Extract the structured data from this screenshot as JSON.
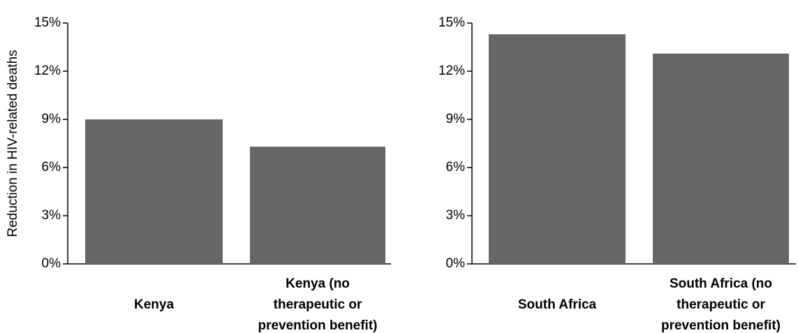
{
  "chart_data": [
    {
      "type": "bar",
      "ylabel": "Reduction in HIV-related deaths",
      "categories": [
        [
          "Kenya"
        ],
        [
          "Kenya (no",
          "therapeutic or",
          "prevention benefit)"
        ]
      ],
      "values": [
        9.0,
        7.3
      ],
      "color": "#666666",
      "ylim": [
        0,
        15
      ],
      "yticks": [
        {
          "value": 0,
          "label": "0%"
        },
        {
          "value": 3,
          "label": "3%"
        },
        {
          "value": 6,
          "label": "6%"
        },
        {
          "value": 9,
          "label": "9%"
        },
        {
          "value": 12,
          "label": "12%"
        },
        {
          "value": 15,
          "label": "15%"
        }
      ]
    },
    {
      "type": "bar",
      "categories": [
        [
          "South Africa"
        ],
        [
          "South Africa (no",
          "therapeutic or",
          "prevention benefit)"
        ]
      ],
      "values": [
        14.3,
        13.1
      ],
      "color": "#666666",
      "ylim": [
        0,
        15
      ],
      "yticks": [
        {
          "value": 0,
          "label": "0%"
        },
        {
          "value": 3,
          "label": "3%"
        },
        {
          "value": 6,
          "label": "6%"
        },
        {
          "value": 9,
          "label": "9%"
        },
        {
          "value": 12,
          "label": "12%"
        },
        {
          "value": 15,
          "label": "15%"
        }
      ]
    }
  ]
}
